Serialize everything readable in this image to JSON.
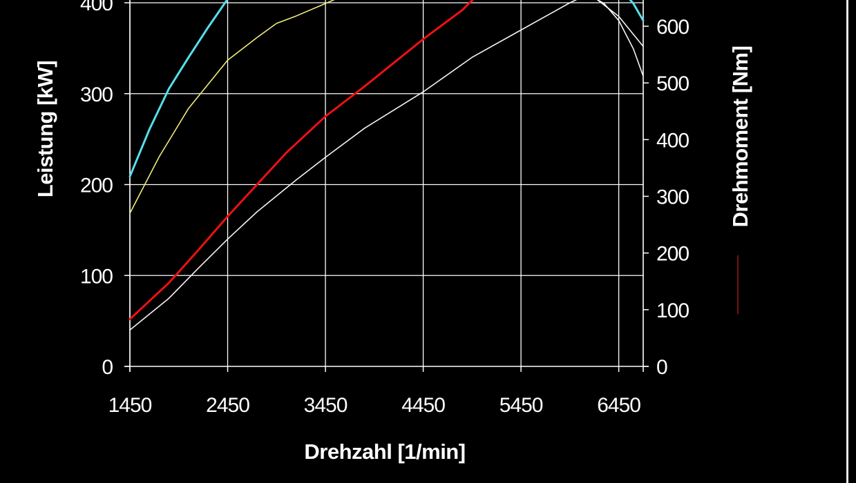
{
  "chart_data": {
    "type": "line",
    "background": "#000000",
    "grid": true,
    "grid_color": "#ffffff",
    "xlabel": "Drehzahl [1/min]",
    "ylabel_left": "Leistung [kW]",
    "ylabel_right": "Drehmoment [Nm]",
    "xlim": [
      1450,
      6700
    ],
    "ylim_left": [
      0,
      400
    ],
    "ylim_right": [
      0,
      650
    ],
    "x_ticks": [
      1450,
      2450,
      3450,
      4450,
      5450,
      6450
    ],
    "y_left_ticks": [
      0,
      100,
      200,
      300,
      400
    ],
    "y_right_ticks": [
      0,
      100,
      200,
      300,
      400,
      500,
      600
    ],
    "x_tick_labels": [
      "1450",
      "2450",
      "3450",
      "4450",
      "5450",
      "6450"
    ],
    "y_left_tick_labels": [
      "0",
      "100",
      "200",
      "300",
      "400"
    ],
    "y_right_tick_labels": [
      "0",
      "100",
      "200",
      "300",
      "400",
      "500",
      "600"
    ],
    "series": [
      {
        "axis": "left",
        "color": "#ee1111",
        "width": 3,
        "x": [
          1450,
          1850,
          2150,
          2450,
          2750,
          3050,
          3450,
          3850,
          4450,
          4850,
          5000
        ],
        "y": [
          52,
          92,
          128,
          165,
          200,
          235,
          275,
          308,
          360,
          392,
          408
        ]
      },
      {
        "axis": "left",
        "color": "#f5f5f5",
        "width": 1.6,
        "x": [
          1450,
          1850,
          2150,
          2450,
          2750,
          3150,
          3450,
          3850,
          4450,
          4950,
          5450,
          5750,
          5950,
          6150,
          6450,
          6700
        ],
        "y": [
          40,
          75,
          108,
          140,
          170,
          205,
          230,
          262,
          302,
          340,
          370,
          388,
          400,
          410,
          385,
          352
        ]
      },
      {
        "axis": "right",
        "color": "#55e0ea",
        "width": 3,
        "x": [
          1450,
          1650,
          1850,
          2050,
          2250,
          2450,
          2530
        ],
        "y": [
          335,
          418,
          490,
          545,
          598,
          648,
          670
        ]
      },
      {
        "axis": "right",
        "color": "#f2ee7a",
        "width": 1.6,
        "x": [
          1450,
          1750,
          2050,
          2450,
          2750,
          2950,
          3150,
          3450,
          3650
        ],
        "y": [
          270,
          370,
          455,
          540,
          580,
          605,
          618,
          640,
          655
        ]
      },
      {
        "axis": "right",
        "color": "#f5f5f5",
        "width": 1.6,
        "x": [
          5800,
          5950,
          6050,
          6150,
          6300,
          6450,
          6600,
          6700
        ],
        "y": [
          655,
          652,
          655,
          655,
          640,
          610,
          560,
          512
        ]
      },
      {
        "axis": "right",
        "color": "#55e0ea",
        "width": 3,
        "x": [
          6500,
          6600,
          6700
        ],
        "y": [
          660,
          640,
          610
        ]
      }
    ]
  }
}
